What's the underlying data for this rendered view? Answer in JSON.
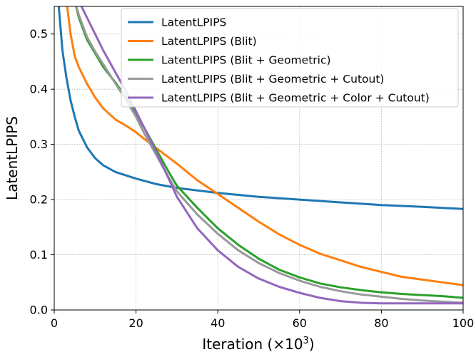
{
  "chart_data": {
    "type": "line",
    "xlabel": "Iteration (×10",
    "xlabel_sup": "3",
    "xlabel_end": ")",
    "ylabel": "LatentLPIPS",
    "xlim": [
      0,
      100
    ],
    "ylim": [
      0,
      0.55
    ],
    "xticks": [
      0,
      20,
      40,
      60,
      80,
      100
    ],
    "yticks": [
      0.0,
      0.1,
      0.2,
      0.3,
      0.4,
      0.5
    ],
    "ytick_labels": [
      "0.0",
      "0.1",
      "0.2",
      "0.3",
      "0.4",
      "0.5"
    ],
    "grid": true,
    "legend_position": "top-right",
    "series": [
      {
        "name": "LatentLPIPS",
        "color": "#1f77b4",
        "x": [
          1,
          2,
          3,
          4,
          5,
          6,
          8,
          10,
          12,
          15,
          20,
          25,
          30,
          40,
          50,
          60,
          70,
          80,
          90,
          100
        ],
        "y": [
          0.56,
          0.47,
          0.42,
          0.38,
          0.35,
          0.325,
          0.295,
          0.275,
          0.262,
          0.25,
          0.238,
          0.228,
          0.221,
          0.212,
          0.205,
          0.2,
          0.195,
          0.19,
          0.187,
          0.183
        ]
      },
      {
        "name": "LatentLPIPS (Blit)",
        "color": "#ff7f0e",
        "x": [
          3,
          4,
          5,
          6,
          8,
          10,
          12,
          15,
          18,
          20,
          22,
          25,
          30,
          35,
          40,
          45,
          50,
          55,
          60,
          65,
          70,
          75,
          80,
          85,
          90,
          95,
          100
        ],
        "y": [
          0.56,
          0.5,
          0.46,
          0.44,
          0.41,
          0.385,
          0.365,
          0.345,
          0.332,
          0.322,
          0.31,
          0.293,
          0.265,
          0.235,
          0.21,
          0.185,
          0.16,
          0.137,
          0.118,
          0.102,
          0.09,
          0.078,
          0.069,
          0.06,
          0.055,
          0.05,
          0.045
        ]
      },
      {
        "name": "LatentLPIPS (Blit + Geometric)",
        "color": "#2ca02c",
        "x": [
          5,
          6,
          8,
          10,
          12,
          15,
          18,
          20,
          22,
          25,
          28,
          30,
          35,
          40,
          45,
          50,
          55,
          60,
          65,
          70,
          75,
          80,
          85,
          90,
          95,
          100
        ],
        "y": [
          0.56,
          0.53,
          0.49,
          0.465,
          0.44,
          0.412,
          0.38,
          0.355,
          0.33,
          0.29,
          0.25,
          0.225,
          0.185,
          0.148,
          0.118,
          0.093,
          0.073,
          0.059,
          0.048,
          0.041,
          0.036,
          0.032,
          0.029,
          0.027,
          0.025,
          0.022
        ]
      },
      {
        "name": "LatentLPIPS (Blit + Geometric + Cutout)",
        "color": "#999999",
        "x": [
          5,
          6,
          8,
          10,
          12,
          15,
          18,
          20,
          22,
          25,
          28,
          30,
          35,
          40,
          45,
          50,
          55,
          60,
          65,
          70,
          75,
          80,
          85,
          90,
          95,
          100
        ],
        "y": [
          0.56,
          0.535,
          0.495,
          0.468,
          0.445,
          0.41,
          0.375,
          0.35,
          0.32,
          0.28,
          0.24,
          0.215,
          0.173,
          0.138,
          0.108,
          0.085,
          0.067,
          0.053,
          0.042,
          0.034,
          0.028,
          0.024,
          0.02,
          0.017,
          0.015,
          0.013
        ]
      },
      {
        "name": "LatentLPIPS (Blit + Geometric + Color + Cutout)",
        "color": "#9467bd",
        "x": [
          6,
          8,
          10,
          12,
          15,
          18,
          20,
          22,
          25,
          28,
          30,
          35,
          40,
          45,
          50,
          55,
          60,
          65,
          70,
          75,
          80,
          85,
          90,
          95,
          100
        ],
        "y": [
          0.56,
          0.53,
          0.5,
          0.47,
          0.43,
          0.39,
          0.36,
          0.33,
          0.285,
          0.238,
          0.205,
          0.148,
          0.108,
          0.078,
          0.057,
          0.042,
          0.031,
          0.022,
          0.016,
          0.013,
          0.012,
          0.012,
          0.012,
          0.012,
          0.012
        ]
      }
    ]
  }
}
